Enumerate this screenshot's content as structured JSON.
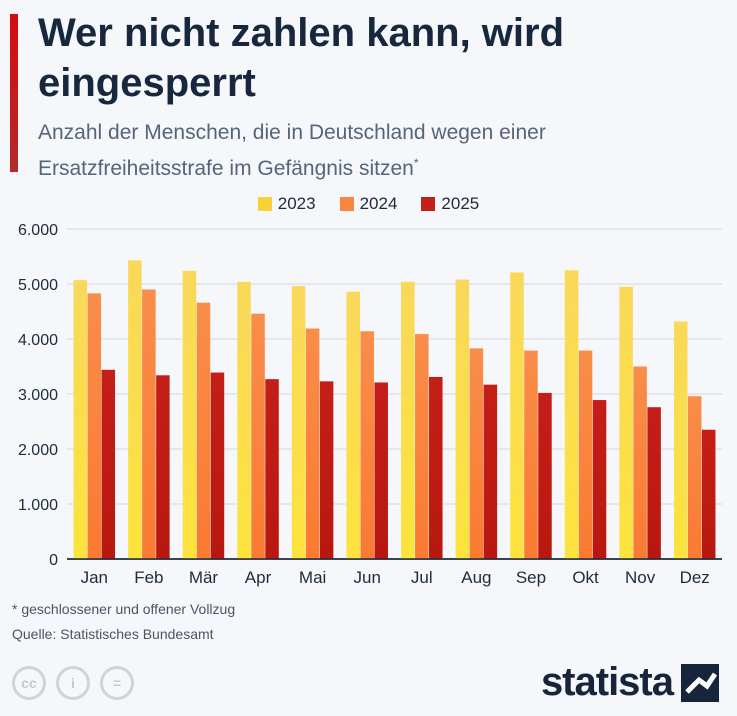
{
  "title": "Wer nicht zahlen kann, wird eingesperrt",
  "subtitle": "Anzahl der Menschen, die in Deutschland wegen einer Ersatzfreiheitsstrafe im Gefängnis sitzen",
  "subtitle_mark": "*",
  "footnote": "* geschlossener und offener Vollzug",
  "source": "Quelle: Statistisches Bundesamt",
  "brand": "statista",
  "license_icons": [
    {
      "name": "cc-icon",
      "label": "cc"
    },
    {
      "name": "by-icon",
      "label": "i"
    },
    {
      "name": "nd-icon",
      "label": "="
    }
  ],
  "colors": {
    "accent": "#d20e0e",
    "title": "#17283e",
    "series_2023": "#f9cf3a",
    "series_2024": "#f9853f",
    "series_2025": "#c11f17",
    "grid": "#d4d9df"
  },
  "chart_data": {
    "type": "bar",
    "title": "Wer nicht zahlen kann, wird eingesperrt",
    "xlabel": "",
    "ylabel": "",
    "ylim": [
      0,
      6000
    ],
    "yticks": [
      0,
      1000,
      2000,
      3000,
      4000,
      5000,
      6000
    ],
    "ytick_labels": [
      "0",
      "1.000",
      "2.000",
      "3.000",
      "4.000",
      "5.000",
      "6.000"
    ],
    "grid": true,
    "legend_position": "top-center",
    "categories": [
      "Jan",
      "Feb",
      "Mär",
      "Apr",
      "Mai",
      "Jun",
      "Jul",
      "Aug",
      "Sep",
      "Okt",
      "Nov",
      "Dez"
    ],
    "series": [
      {
        "name": "2023",
        "values": [
          5070,
          5430,
          5240,
          5040,
          4960,
          4860,
          5040,
          5080,
          5210,
          5250,
          4950,
          4320
        ]
      },
      {
        "name": "2024",
        "values": [
          4830,
          4900,
          4660,
          4460,
          4190,
          4140,
          4090,
          3830,
          3790,
          3790,
          3500,
          2960
        ]
      },
      {
        "name": "2025",
        "values": [
          3440,
          3340,
          3390,
          3270,
          3230,
          3210,
          3310,
          3170,
          3020,
          2890,
          2760,
          2350
        ]
      }
    ]
  }
}
